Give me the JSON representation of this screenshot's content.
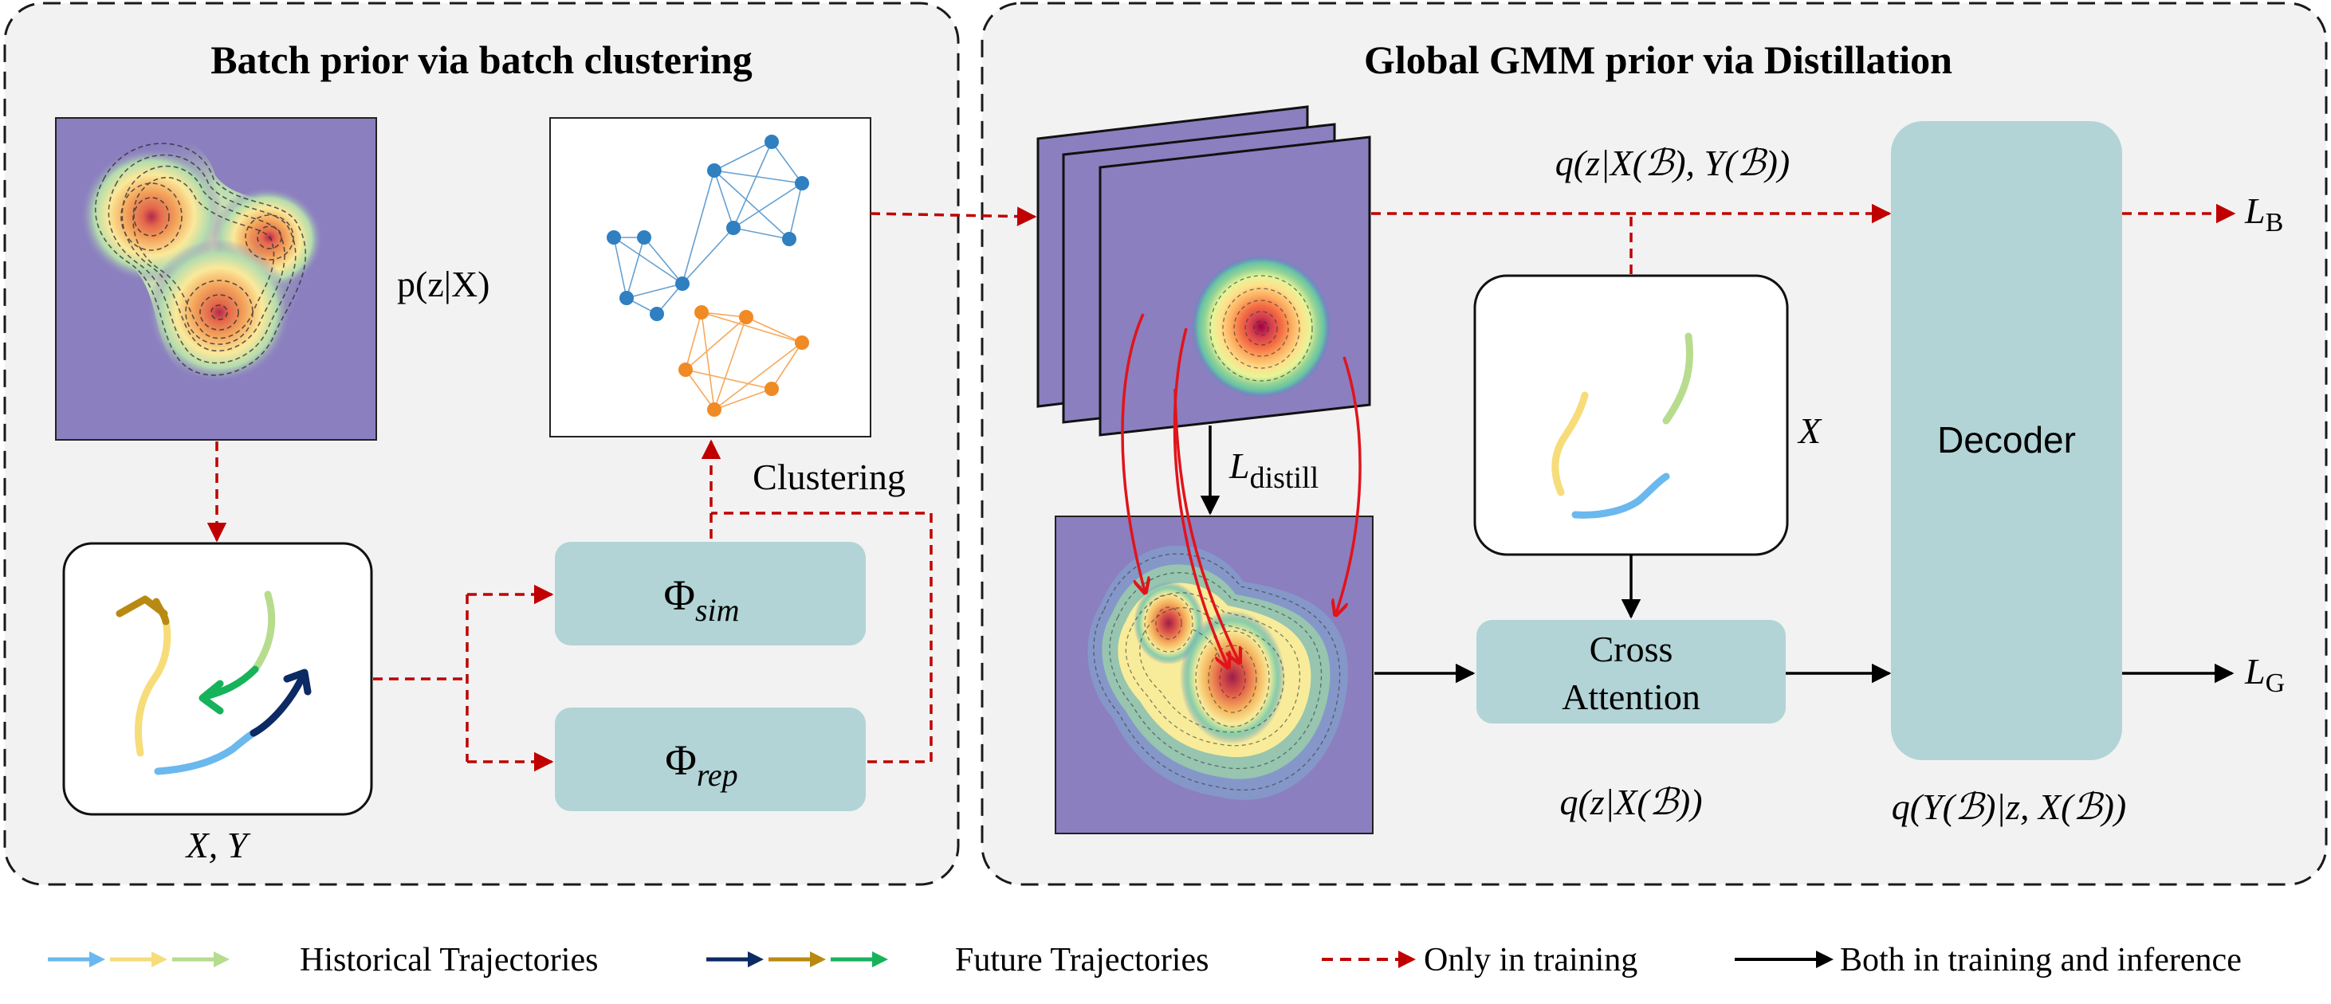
{
  "left_panel": {
    "title": "Batch prior via batch clustering",
    "density_label": "p(z|X)",
    "clustering_label": "Clustering",
    "phi_sim": "Φ",
    "phi_sim_sub": "sim",
    "phi_rep": "Φ",
    "phi_rep_sub": "rep",
    "traj_label": "X, Y"
  },
  "right_panel": {
    "title": "Global GMM prior via Distillation",
    "q_batch_label": "q(z|X(ℬ), Y(ℬ))",
    "l_distill": "L",
    "l_distill_sub": "distill",
    "x_label": "X",
    "cross_attention_line1": "Cross",
    "cross_attention_line2": "Attention",
    "decoder": "Decoder",
    "q_prior_label": "q(z|X(ℬ))",
    "q_decoder_label": "q(Y(ℬ)|z, X(ℬ))",
    "loss_b": "L",
    "loss_b_sub": "B",
    "loss_g": "L",
    "loss_g_sub": "G"
  },
  "legend": {
    "historical": "Historical Trajectories",
    "future": "Future Trajectories",
    "training_only": "Only in training",
    "both": "Both in training and inference"
  },
  "colors": {
    "panel_bg": "#f2f2f2",
    "block_fill": "#b2d4d6",
    "plot_bg": "#8b7fc0",
    "red_dashed": "#c00000",
    "blue_nodes": "#2f7fc1",
    "orange_nodes": "#f08a24",
    "hist_blue": "#6ab8ee",
    "hist_yellow": "#f7dc7a",
    "hist_green": "#b7dc8e",
    "future_navy": "#0c2a63",
    "future_gold": "#b88a12",
    "future_green": "#16b35a"
  }
}
